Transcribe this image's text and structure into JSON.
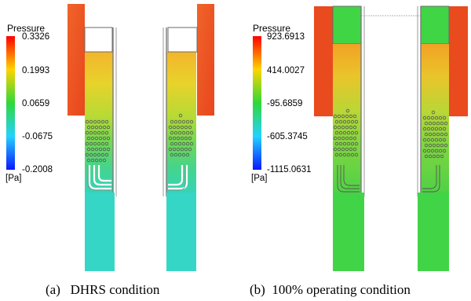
{
  "panel_a": {
    "legend": {
      "title": "Pressure",
      "unit": "[Pa]",
      "ticks": [
        "0.3326",
        "0.1993",
        "0.0659",
        "-0.0675",
        "-0.2008"
      ]
    },
    "caption": {
      "label": "(a)",
      "text": "DHRS condition"
    }
  },
  "panel_b": {
    "legend": {
      "title": "Pressure",
      "unit": "[Pa]",
      "ticks": [
        "923.6913",
        "414.0027",
        "-95.6859",
        "-605.3745",
        "-1115.0631"
      ]
    },
    "caption": {
      "label": "(b)",
      "text": "100% operating condition"
    }
  },
  "colors": {
    "red": "#e8431c",
    "orange": "#f07a22",
    "yellow": "#e9d22a",
    "green": "#45d04a",
    "cyan": "#33d3c0",
    "blue": "#1832e8"
  }
}
